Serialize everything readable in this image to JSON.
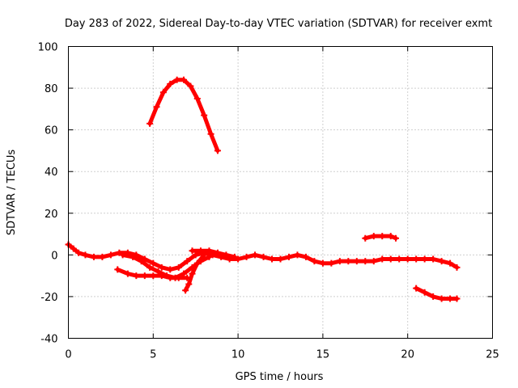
{
  "chart_data": {
    "type": "scatter",
    "title": "Day 283 of 2022, Sidereal Day-to-day VTEC variation (SDTVAR) for receiver exmt",
    "xlabel": "GPS time / hours",
    "ylabel": "SDTVAR / TECUs",
    "xlim": [
      0,
      25
    ],
    "ylim": [
      -40,
      100
    ],
    "xticks": [
      "0",
      "5",
      "10",
      "15",
      "20",
      "25"
    ],
    "yticks": [
      "-40",
      "-20",
      "0",
      "20",
      "40",
      "60",
      "80",
      "100"
    ],
    "grid": true,
    "color": "#ff0000",
    "series": [
      {
        "name": "arc-main",
        "x": [
          0,
          0.3,
          0.6,
          1.0,
          1.5,
          2.0,
          2.5,
          3.0,
          3.5,
          4.0,
          4.5,
          5.0,
          5.5,
          6.0,
          6.5,
          7.0,
          7.5,
          8.0,
          8.5,
          9.0,
          9.5,
          10.0,
          10.5,
          11.0,
          11.5,
          12.0,
          12.5,
          13.0,
          13.5,
          14.0,
          14.5,
          15.0,
          15.5,
          16.0,
          16.5,
          17.0,
          17.5,
          18.0,
          18.5,
          19.0,
          19.5,
          20.0,
          20.5,
          21.0,
          21.5,
          22.0,
          22.5,
          22.9
        ],
        "y": [
          5,
          3,
          1,
          0,
          -1,
          -1,
          0,
          1,
          1,
          0,
          -2,
          -4,
          -6,
          -7,
          -6,
          -3,
          0,
          1,
          0,
          -1,
          -2,
          -2,
          -1,
          0,
          -1,
          -2,
          -2,
          -1,
          0,
          -1,
          -3,
          -4,
          -4,
          -3,
          -3,
          -3,
          -3,
          -3,
          -2,
          -2,
          -2,
          -2,
          -2,
          -2,
          -2,
          -3,
          -4,
          -6
        ]
      },
      {
        "name": "arc-high",
        "x": [
          4.8,
          5.2,
          5.6,
          6.0,
          6.4,
          6.8,
          7.2,
          7.6,
          8.0,
          8.4,
          8.8
        ],
        "y": [
          63,
          71,
          78,
          82,
          84,
          84,
          81,
          75,
          67,
          58,
          50
        ]
      },
      {
        "name": "arc-17h",
        "x": [
          17.5,
          18.0,
          18.5,
          19.0,
          19.3
        ],
        "y": [
          8,
          9,
          9,
          9,
          8
        ]
      },
      {
        "name": "arc-late",
        "x": [
          20.5,
          21.0,
          21.5,
          22.0,
          22.5,
          22.9
        ],
        "y": [
          -16,
          -18,
          -20,
          -21,
          -21,
          -21
        ]
      },
      {
        "name": "arc-3h",
        "x": [
          2.9,
          3.5,
          4.0,
          4.5,
          5.0,
          5.5,
          6.0,
          6.5,
          7.0
        ],
        "y": [
          -7,
          -9,
          -10,
          -10,
          -10,
          -10,
          -11,
          -11,
          -11
        ]
      },
      {
        "name": "arc-4h",
        "x": [
          3.2,
          3.8,
          4.3,
          4.8,
          5.3,
          5.8,
          6.3,
          6.8,
          7.3,
          7.8,
          8.3
        ],
        "y": [
          0,
          -1,
          -3,
          -6,
          -8,
          -10,
          -11,
          -9,
          -6,
          -3,
          -1
        ]
      },
      {
        "name": "arc-dip",
        "x": [
          6.9,
          7.1,
          7.3,
          7.6,
          8.0
        ],
        "y": [
          -17,
          -14,
          -9,
          -4,
          0
        ]
      },
      {
        "name": "arc-7h",
        "x": [
          7.3,
          7.8,
          8.3,
          8.8,
          9.3,
          9.8
        ],
        "y": [
          2,
          2,
          2,
          1,
          0,
          -1
        ]
      }
    ]
  }
}
